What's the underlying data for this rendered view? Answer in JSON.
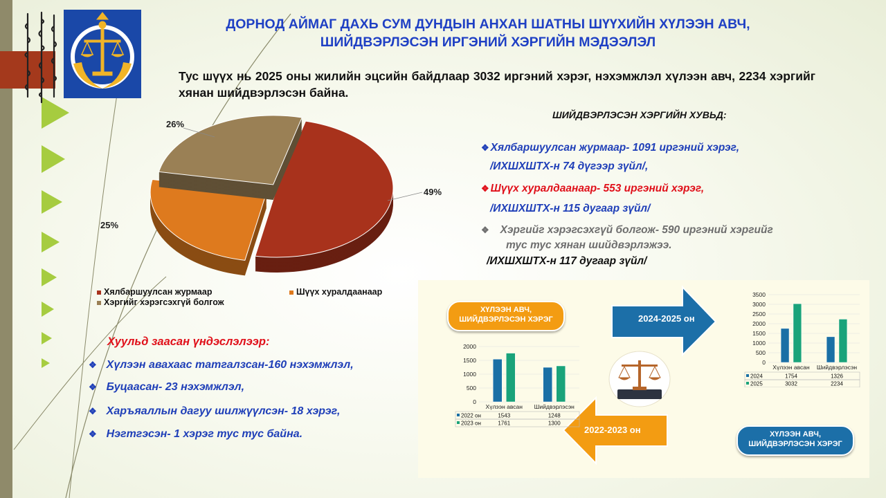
{
  "title_line1": "ДОРНОД АЙМАГ ДАХЬ СУМ ДУНДЫН АНХАН ШАТНЫ ШҮҮХИЙН ХҮЛЭЭН АВЧ,",
  "title_line2": "ШИЙДВЭРЛЭСЭН ИРГЭНИЙ ХЭРГИЙН МЭДЭЭЛЭЛ",
  "intro": "Тус шүүх нь 2025 оны жилийн эцсийн байдлаар 3032 иргэний хэрэг, нэхэмжлэл хүлээн авч, 2234 хэргийг хянан шийдвэрлэсэн байна.",
  "resolved": {
    "heading": "ШИЙДВЭРЛЭСЭН ХЭРГИЙН ХУВЬД:",
    "items": [
      {
        "line1": "Хялбаршуулсан журмаар- 1091 иргэний хэрэг,",
        "line2": "/ИХШХШТХ-н 74 дүгээр зүйл/,"
      },
      {
        "line1": "Шүүх хуралдаанаар- 553 иргэний хэрэг,",
        "line2": "/ИХШХШТХ-н 115 дугаар зүйл/"
      },
      {
        "line1": "Хэргийг хэрэгсэхгүй болгож- 590 иргэний хэргийг",
        "line2": "тус тус хянан шийдвэрлэжээ.",
        "line3": "/ИХШХШТХ-н 117 дугаар зүйл/"
      }
    ]
  },
  "pie": {
    "chart_data": {
      "type": "pie",
      "slices": [
        {
          "name": "Хялбаршуулсан журмаар",
          "value": 49,
          "label": "49%",
          "color": "#a8321c"
        },
        {
          "name": "Шүүх хуралдаанаар",
          "value": 25,
          "label": "25%",
          "color": "#de7a1e"
        },
        {
          "name": "Хэргийг хэрэгсэхгүй болгож",
          "value": 26,
          "label": "26%",
          "color": "#9a8055"
        }
      ]
    }
  },
  "legal": {
    "heading": "Хуульд заасан үндэслэлээр:",
    "items": [
      "Хүлээн авахаас татгалзсан-160 нэхэмжлэл,",
      "Буцаасан- 23 нэхэмжлэл,",
      "Харъяаллын  дагуу шилжүүлсэн- 18 хэрэг,",
      "Нэгтгэсэн- 1 хэрэг тус тус байна."
    ]
  },
  "infographic": {
    "pill_top": {
      "line1": "ХҮЛЭЭН АВЧ,",
      "line2": "ШИЙДВЭРЛЭСЭН ХЭРЭГ"
    },
    "pill_bottom": {
      "line1": "ХҮЛЭЭН АВЧ,",
      "line2": "ШИЙДВЭРЛЭСЭН ХЭРЭГ"
    },
    "arrow_right_label": "2024-2025 он",
    "arrow_left_label": "2022-2023 он",
    "chart_left": {
      "chart_data": {
        "type": "bar",
        "categories": [
          "Хүлээн авсан",
          "Шийдвэрлэсэн"
        ],
        "series": [
          {
            "name": "2022 он",
            "values": [
              1543,
              1248
            ],
            "color": "#1a6fa5"
          },
          {
            "name": "2023 он",
            "values": [
              1761,
              1300
            ],
            "color": "#1aa37a"
          }
        ],
        "ylim": [
          0,
          2000
        ],
        "yticks": [
          "0",
          "500",
          "1000",
          "1500",
          "2000"
        ],
        "table": [
          [
            "2022 он",
            "1543",
            "1248"
          ],
          [
            "2023 он",
            "1761",
            "1300"
          ]
        ]
      }
    },
    "chart_right": {
      "chart_data": {
        "type": "bar",
        "categories": [
          "Хүлээн авсан",
          "Шийдвэрлэсэн"
        ],
        "series": [
          {
            "name": "2024",
            "values": [
              1754,
              1326
            ],
            "color": "#1a6fa5"
          },
          {
            "name": "2025",
            "values": [
              3032,
              2234
            ],
            "color": "#1aa37a"
          }
        ],
        "ylim": [
          0,
          3500
        ],
        "yticks": [
          "0",
          "500",
          "1000",
          "1500",
          "2000",
          "2500",
          "3000",
          "3500"
        ],
        "table": [
          [
            "2024",
            "1754",
            "1326"
          ],
          [
            "2025",
            "3032",
            "2234"
          ]
        ]
      }
    }
  }
}
